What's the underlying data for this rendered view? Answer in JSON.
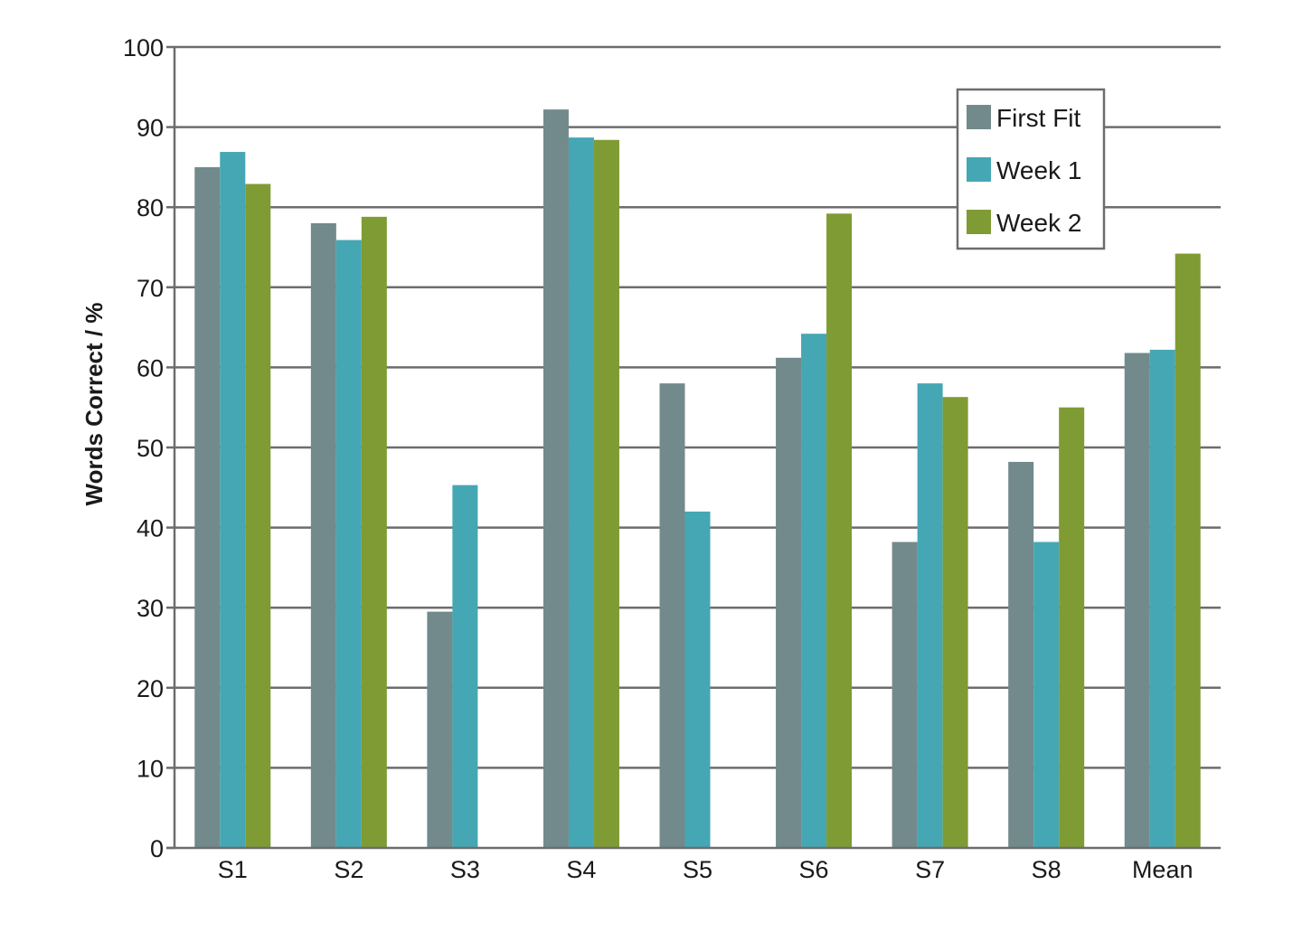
{
  "chart_data": {
    "type": "bar",
    "title": "",
    "xlabel": "",
    "ylabel": "Words Correct / %",
    "ylim": [
      0,
      100
    ],
    "yticks": [
      0,
      10,
      20,
      30,
      40,
      50,
      60,
      70,
      80,
      90,
      100
    ],
    "grid": true,
    "legend_position": "top-right",
    "categories": [
      "S1",
      "S2",
      "S3",
      "S4",
      "S5",
      "S6",
      "S7",
      "S8",
      "Mean"
    ],
    "series": [
      {
        "name": "First Fit",
        "color": "#728a8b",
        "values": [
          85,
          78,
          29.5,
          92.2,
          58,
          61.2,
          38.2,
          48.2,
          61.8
        ]
      },
      {
        "name": "Week 1",
        "color": "#45a7b3",
        "values": [
          86.9,
          75.9,
          45.3,
          88.7,
          42,
          64.2,
          58,
          38.2,
          62.2
        ]
      },
      {
        "name": "Week 2",
        "color": "#7f9b33",
        "values": [
          82.9,
          78.8,
          null,
          88.4,
          null,
          79.2,
          56.3,
          55,
          74.2
        ]
      }
    ]
  }
}
